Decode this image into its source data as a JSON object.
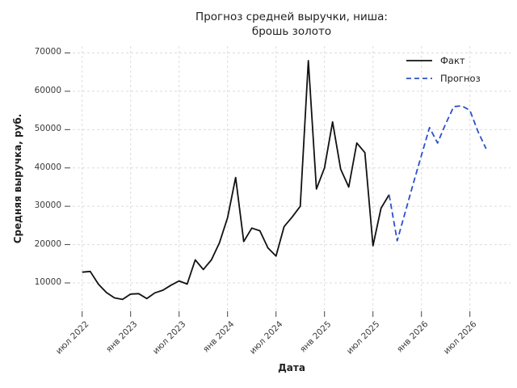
{
  "title": {
    "line1": "Прогноз средней выручки, ниша:",
    "line2": "брошь золото"
  },
  "chart_data": {
    "type": "line",
    "title": "Прогноз средней выручки, ниша: брошь золото",
    "xlabel": "Дата",
    "ylabel": "Средняя выручка, руб.",
    "grid": "dashed light-gray, both axes",
    "legend_position": "upper right, no frame",
    "y_ticks": [
      10000,
      20000,
      30000,
      40000,
      50000,
      60000,
      70000
    ],
    "ylim": [
      2600,
      71800
    ],
    "x_tick_labels": [
      "июл 2022",
      "янв 2023",
      "июл 2023",
      "янв 2024",
      "июл 2024",
      "янв 2025",
      "июл 2025",
      "янв 2026",
      "июл 2026"
    ],
    "x_tick_month_indices": [
      0,
      6,
      12,
      18,
      24,
      30,
      36,
      42,
      48
    ],
    "series": [
      {
        "name": "Факт",
        "style": "solid",
        "color": "#111111",
        "start_month_index": 0,
        "x": [
          "2022-07",
          "2022-08",
          "2022-09",
          "2022-10",
          "2022-11",
          "2022-12",
          "2023-01",
          "2023-02",
          "2023-03",
          "2023-04",
          "2023-05",
          "2023-06",
          "2023-07",
          "2023-08",
          "2023-09",
          "2023-10",
          "2023-11",
          "2023-12",
          "2024-01",
          "2024-02",
          "2024-03",
          "2024-04",
          "2024-05",
          "2024-06",
          "2024-07",
          "2024-08",
          "2024-09",
          "2024-10",
          "2024-11",
          "2024-12",
          "2025-01",
          "2025-02",
          "2025-03",
          "2025-04",
          "2025-05",
          "2025-06",
          "2025-07",
          "2025-08",
          "2025-09"
        ],
        "values": [
          12800,
          13000,
          9700,
          7500,
          6100,
          5700,
          7100,
          7200,
          5900,
          7400,
          8100,
          9400,
          10500,
          9700,
          16000,
          13500,
          16000,
          20500,
          27000,
          37500,
          20800,
          24300,
          23600,
          19100,
          17000,
          24700,
          27200,
          30000,
          68000,
          34500,
          40000,
          52000,
          39700,
          35000,
          46500,
          44000,
          19700,
          29500,
          33000
        ]
      },
      {
        "name": "Прогноз",
        "style": "dashed",
        "color": "#2b50c8",
        "start_month_index": 39,
        "x": [
          "2025-10",
          "2025-11",
          "2025-12",
          "2026-01",
          "2026-02",
          "2026-03",
          "2026-04",
          "2026-05",
          "2026-06",
          "2026-07",
          "2026-08",
          "2026-09"
        ],
        "values": [
          21000,
          28500,
          36000,
          43300,
          50500,
          46500,
          51500,
          56000,
          56200,
          55000,
          49500,
          45000
        ]
      }
    ]
  }
}
